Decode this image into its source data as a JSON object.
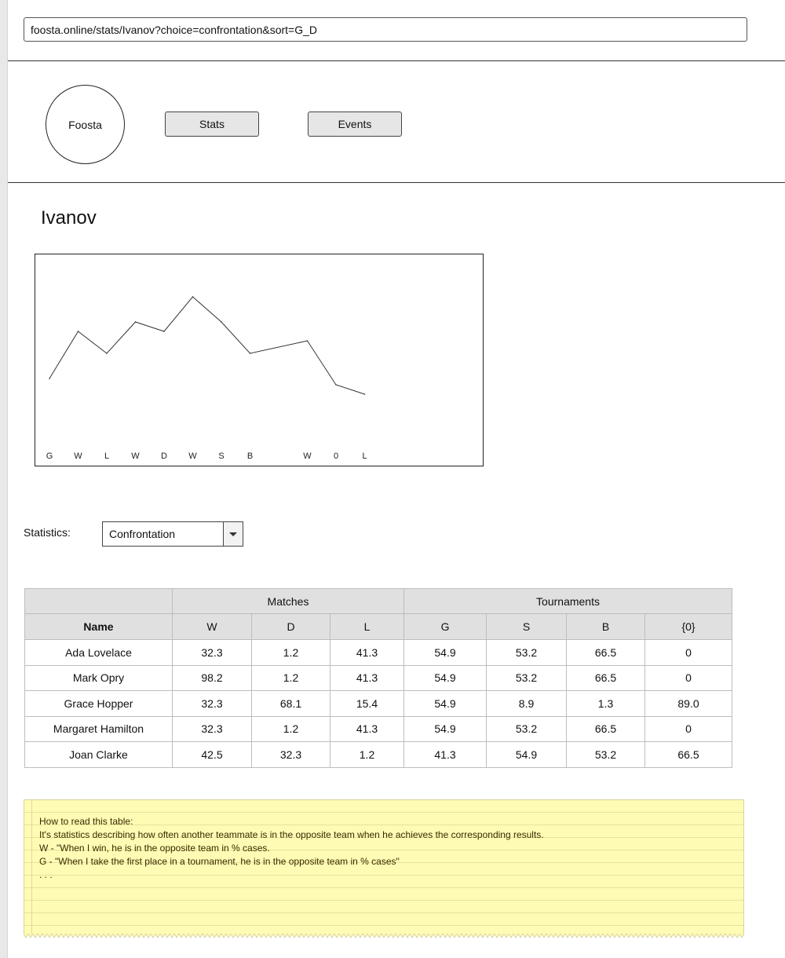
{
  "browser": {
    "url": "foosta.online/stats/Ivanov?choice=confrontation&sort=G_D"
  },
  "header": {
    "logo_text": "Foosta",
    "nav": [
      {
        "label": "Stats"
      },
      {
        "label": "Events"
      }
    ]
  },
  "player": {
    "name": "Ivanov"
  },
  "chart_data": {
    "type": "line",
    "title": "",
    "categories": [
      "G",
      "W",
      "L",
      "W",
      "D",
      "W",
      "S",
      "B",
      "",
      "W",
      "0",
      "L"
    ],
    "series": [
      {
        "values": [
          40,
          55,
          48,
          58,
          55,
          66,
          58,
          48,
          null,
          52,
          38,
          35
        ]
      }
    ],
    "ylim": [
      0,
      100
    ],
    "grid": false,
    "legend": "none",
    "line_color": "#333333"
  },
  "controls": {
    "statistics_label": "Statistics:",
    "statistics_value": "Confrontation"
  },
  "table": {
    "group_headers": [
      "Matches",
      "Tournaments"
    ],
    "columns": [
      "Name",
      "W",
      "D",
      "L",
      "G",
      "S",
      "B",
      "{0}"
    ],
    "rows": [
      [
        "Ada Lovelace",
        "32.3",
        "1.2",
        "41.3",
        "54.9",
        "53.2",
        "66.5",
        "0"
      ],
      [
        "Mark Opry",
        "98.2",
        "1.2",
        "41.3",
        "54.9",
        "53.2",
        "66.5",
        "0"
      ],
      [
        "Grace Hopper",
        "32.3",
        "68.1",
        "15.4",
        "54.9",
        "8.9",
        "1.3",
        "89.0"
      ],
      [
        "Margaret Hamilton",
        "32.3",
        "1.2",
        "41.3",
        "54.9",
        "53.2",
        "66.5",
        "0"
      ],
      [
        "Joan Clarke",
        "42.5",
        "32.3",
        "1.2",
        "41.3",
        "54.9",
        "53.2",
        "66.5"
      ]
    ]
  },
  "note": {
    "lines": [
      "How to read this table:",
      "It's statistics describing how often another teammate is in the opposite team when he achieves the corresponding results.",
      "W - \"When I win, he is in the opposite team in % cases.",
      "G - \"When I take the first place in a tournament, he is in the opposite team in % cases\"",
      ". . ."
    ]
  }
}
